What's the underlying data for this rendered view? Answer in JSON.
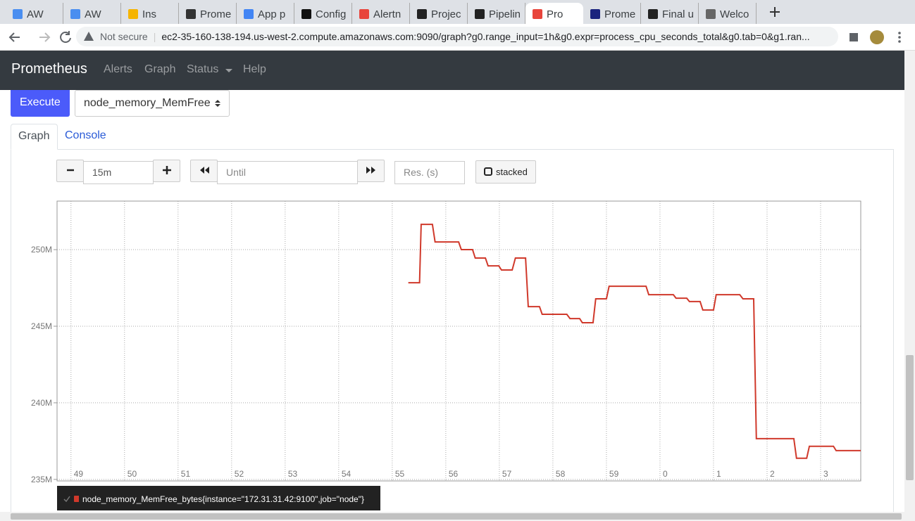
{
  "browser": {
    "tabs": [
      "AW",
      "AW",
      "Ins",
      "Prome",
      "App p",
      "Config",
      "Alertn",
      "Projec",
      "Pipelin",
      "Pro",
      "Prome",
      "Final u",
      "Welco"
    ],
    "address": {
      "security": "Not secure",
      "url": "ec2-35-160-138-194.us-west-2.compute.amazonaws.com:9090/graph?g0.range_input=1h&g0.expr=process_cpu_seconds_total&g0.tab=0&g1.ran..."
    }
  },
  "navbar": {
    "brand": "Prometheus",
    "links": [
      "Alerts",
      "Graph",
      "Status",
      "Help"
    ]
  },
  "query": {
    "execute": "Execute",
    "metric": "node_memory_MemFree"
  },
  "panel_tabs": [
    "Graph",
    "Console"
  ],
  "controls": {
    "range": "15m",
    "until_placeholder": "Until",
    "resolution_placeholder": "Res. (s)",
    "stacked": "stacked"
  },
  "chart_data": {
    "type": "line",
    "x": [
      55.3,
      55.51,
      55.54,
      55.75,
      55.8,
      56.24,
      56.29,
      56.5,
      56.55,
      56.74,
      56.79,
      56.99,
      57.04,
      57.24,
      57.3,
      57.49,
      57.54,
      57.75,
      57.8,
      58.26,
      58.32,
      58.5,
      58.55,
      58.75,
      58.8,
      59.0,
      59.05,
      59.74,
      59.79,
      60.25,
      60.3,
      60.5,
      60.55,
      60.75,
      60.8,
      61.0,
      61.05,
      61.49,
      61.55,
      61.75,
      61.8,
      62.5,
      62.55,
      62.74,
      62.79,
      63.24,
      63.29,
      63.75
    ],
    "series": [
      {
        "name": "node_memory_MemFree_bytes{instance=\"172.31.31.42:9100\",job=\"node\"}",
        "color": "#d0392b",
        "values": [
          247840000,
          247840000,
          251650000,
          251650000,
          250500000,
          250500000,
          250000000,
          250000000,
          249450000,
          249450000,
          248940000,
          248940000,
          248670000,
          248670000,
          249450000,
          249450000,
          246280000,
          246280000,
          245780000,
          245780000,
          245500000,
          245500000,
          245230000,
          245230000,
          246790000,
          246790000,
          247610000,
          247610000,
          247060000,
          247060000,
          246830000,
          246830000,
          246610000,
          246610000,
          246060000,
          246060000,
          247060000,
          247060000,
          246790000,
          246790000,
          237660000,
          237660000,
          236380000,
          236380000,
          237160000,
          237160000,
          236880000,
          236880000
        ]
      }
    ],
    "xlim": [
      48.74,
      63.75
    ],
    "xticks": [
      49,
      50,
      51,
      52,
      53,
      54,
      55,
      56,
      57,
      58,
      59,
      {
        "value": 60,
        "label": "0"
      },
      {
        "value": 61,
        "label": "1"
      },
      {
        "value": 62,
        "label": "2"
      },
      {
        "value": 63,
        "label": "3"
      }
    ],
    "ylim": [
      234900000,
      253170000
    ],
    "yticks": [
      {
        "value": 235000000,
        "label": "235M"
      },
      {
        "value": 240000000,
        "label": "240M"
      },
      {
        "value": 245000000,
        "label": "245M"
      },
      {
        "value": 250000000,
        "label": "250M"
      }
    ],
    "grid": true
  }
}
